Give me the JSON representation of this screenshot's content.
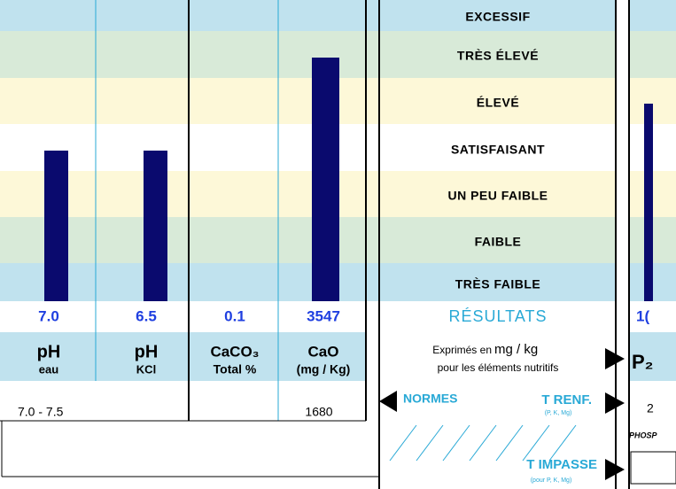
{
  "columns": [
    {
      "value": "7.0",
      "label": "pH",
      "sublabel": "eau",
      "norm": "7.0 - 7.5"
    },
    {
      "value": "6.5",
      "label": "pH",
      "sublabel": "KCl"
    },
    {
      "value": "0.1",
      "label": "CaCO₃",
      "sublabel": "Total %"
    },
    {
      "value": "3547",
      "label": "CaO",
      "sublabel": "(mg / Kg)",
      "norm": "1680"
    }
  ],
  "levels": [
    "EXCESSIF",
    "TRÈS ÉLEVÉ",
    "ÉLEVÉ",
    "SATISFAISANT",
    "UN PEU FAIBLE",
    "FAIBLE",
    "TRÈS FAIBLE"
  ],
  "results": {
    "title": "RÉSULTATS",
    "line1_a": "Exprimés en",
    "line1_b": "mg / kg",
    "line2": "pour les éléments nutritifs"
  },
  "normes": "NORMES",
  "t_renf": {
    "label": "T RENF.",
    "note": "(P, K, Mg)"
  },
  "t_impasse": {
    "label": "T IMPASSE",
    "note": "(pour P, K, Mg)"
  },
  "right": {
    "value": "1(",
    "label": "P₂",
    "norm": "2",
    "caption": "PHOSP"
  }
}
